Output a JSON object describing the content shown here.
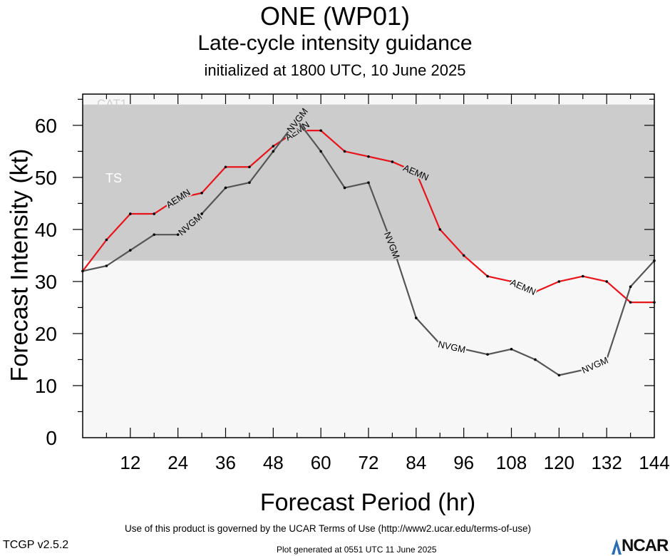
{
  "header": {
    "title": "ONE (WP01)",
    "subtitle": "Late-cycle intensity guidance",
    "initialized": "initialized at 1800 UTC, 10 June 2025"
  },
  "footer": {
    "terms": "Use of this product is governed by the UCAR Terms of Use (http://www2.ucar.edu/terms-of-use)",
    "version": "TCGP v2.5.2",
    "generated": "Plot generated at 0551 UTC   11 June 2025",
    "logo_text": "NCAR"
  },
  "chart_data": {
    "type": "line",
    "xlabel": "Forecast Period (hr)",
    "ylabel": "Forecast Intensity (kt)",
    "xlim": [
      0,
      144
    ],
    "ylim": [
      0,
      66
    ],
    "xticks": [
      12,
      24,
      36,
      48,
      60,
      72,
      84,
      96,
      108,
      120,
      132,
      144
    ],
    "yticks": [
      0,
      10,
      20,
      30,
      40,
      50,
      60
    ],
    "grid": false,
    "bands": [
      {
        "label": "TS",
        "from": 34,
        "to": 64,
        "color": "#cccccc"
      },
      {
        "label": "CAT1",
        "from": 64,
        "to": 66,
        "color": "#f7f7f7"
      }
    ],
    "series": [
      {
        "name": "AEMN",
        "color": "#e8141c",
        "x": [
          0,
          6,
          12,
          18,
          24,
          30,
          36,
          42,
          48,
          54,
          60,
          66,
          72,
          78,
          84,
          90,
          96,
          102,
          108,
          114,
          120,
          126,
          132,
          138,
          144
        ],
        "y": [
          32,
          38,
          43,
          43,
          46,
          47,
          52,
          52,
          56,
          59,
          59,
          55,
          54,
          53,
          51,
          40,
          35,
          31,
          30,
          28,
          30,
          31,
          30,
          26,
          26
        ],
        "labels_at": [
          24,
          54,
          84,
          111
        ]
      },
      {
        "name": "NVGM",
        "color": "#555555",
        "x": [
          0,
          6,
          12,
          18,
          24,
          30,
          36,
          42,
          48,
          54,
          60,
          66,
          72,
          78,
          84,
          90,
          96,
          102,
          108,
          114,
          120,
          126,
          132,
          138,
          144
        ],
        "y": [
          32,
          33,
          36,
          39,
          39,
          43,
          48,
          49,
          55,
          61,
          55,
          48,
          49,
          37,
          23,
          18,
          17,
          16,
          17,
          15,
          12,
          13,
          15,
          29,
          34
        ],
        "labels_at": [
          27,
          54,
          78,
          93,
          129
        ]
      }
    ]
  }
}
